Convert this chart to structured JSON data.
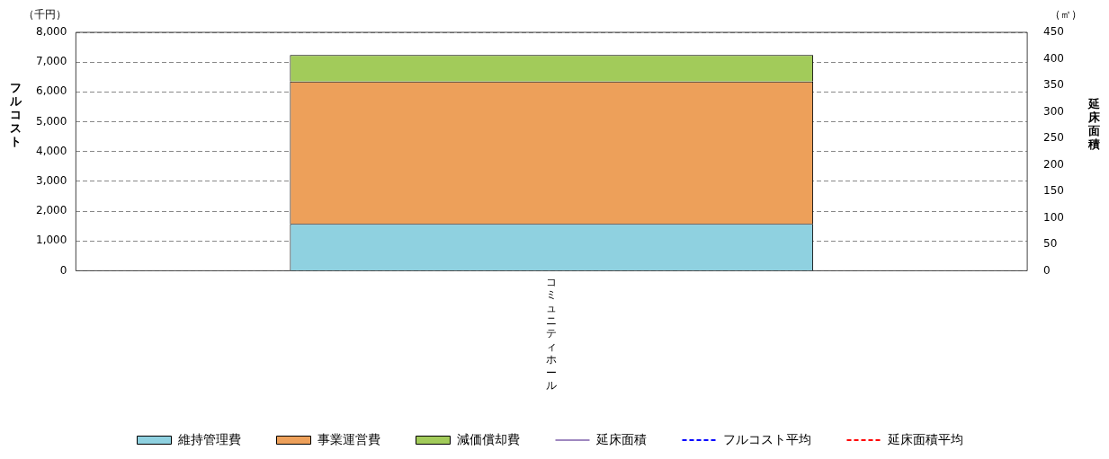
{
  "chart_data": {
    "type": "bar",
    "stacked": true,
    "ylabel": "フルコスト",
    "y2label": "延床面積",
    "annotations": [
      "（千円）",
      "（㎡）"
    ],
    "categories": [
      "コミュニティホール"
    ],
    "series": [
      {
        "name": "維持管理費",
        "color": "#8fd1e0",
        "values": [
          1570
        ]
      },
      {
        "name": "事業運営費",
        "color": "#eda05a",
        "values": [
          4780
        ]
      },
      {
        "name": "減価償却費",
        "color": "#a2cb5a",
        "values": [
          890
        ]
      },
      {
        "name": "延床面積",
        "type": "line",
        "color": "#9f88c0",
        "line_style": "solid",
        "values": [
          null
        ]
      },
      {
        "name": "フルコスト平均",
        "type": "line",
        "color": "#0000ff",
        "line_style": "dashed",
        "values": [
          null
        ]
      },
      {
        "name": "延床面積平均",
        "type": "line",
        "color": "#ff0000",
        "line_style": "dashed",
        "values": [
          null
        ]
      }
    ],
    "ylim": [
      0,
      8000
    ],
    "yticks": [
      0,
      {
        "value": 1000,
        "label": "1,000"
      },
      {
        "value": 2000,
        "label": "2,000"
      },
      {
        "value": 3000,
        "label": "3,000"
      },
      {
        "value": 4000,
        "label": "4,000"
      },
      {
        "value": 5000,
        "label": "5,000"
      },
      {
        "value": 6000,
        "label": "6,000"
      },
      {
        "value": 7000,
        "label": "7,000"
      },
      {
        "value": 8000,
        "label": "8,000"
      }
    ],
    "y2lim": [
      0,
      450
    ],
    "y2ticks": [
      0,
      50,
      100,
      150,
      200,
      250,
      300,
      350,
      400,
      450
    ],
    "grid": "y",
    "legend": "bottom"
  }
}
